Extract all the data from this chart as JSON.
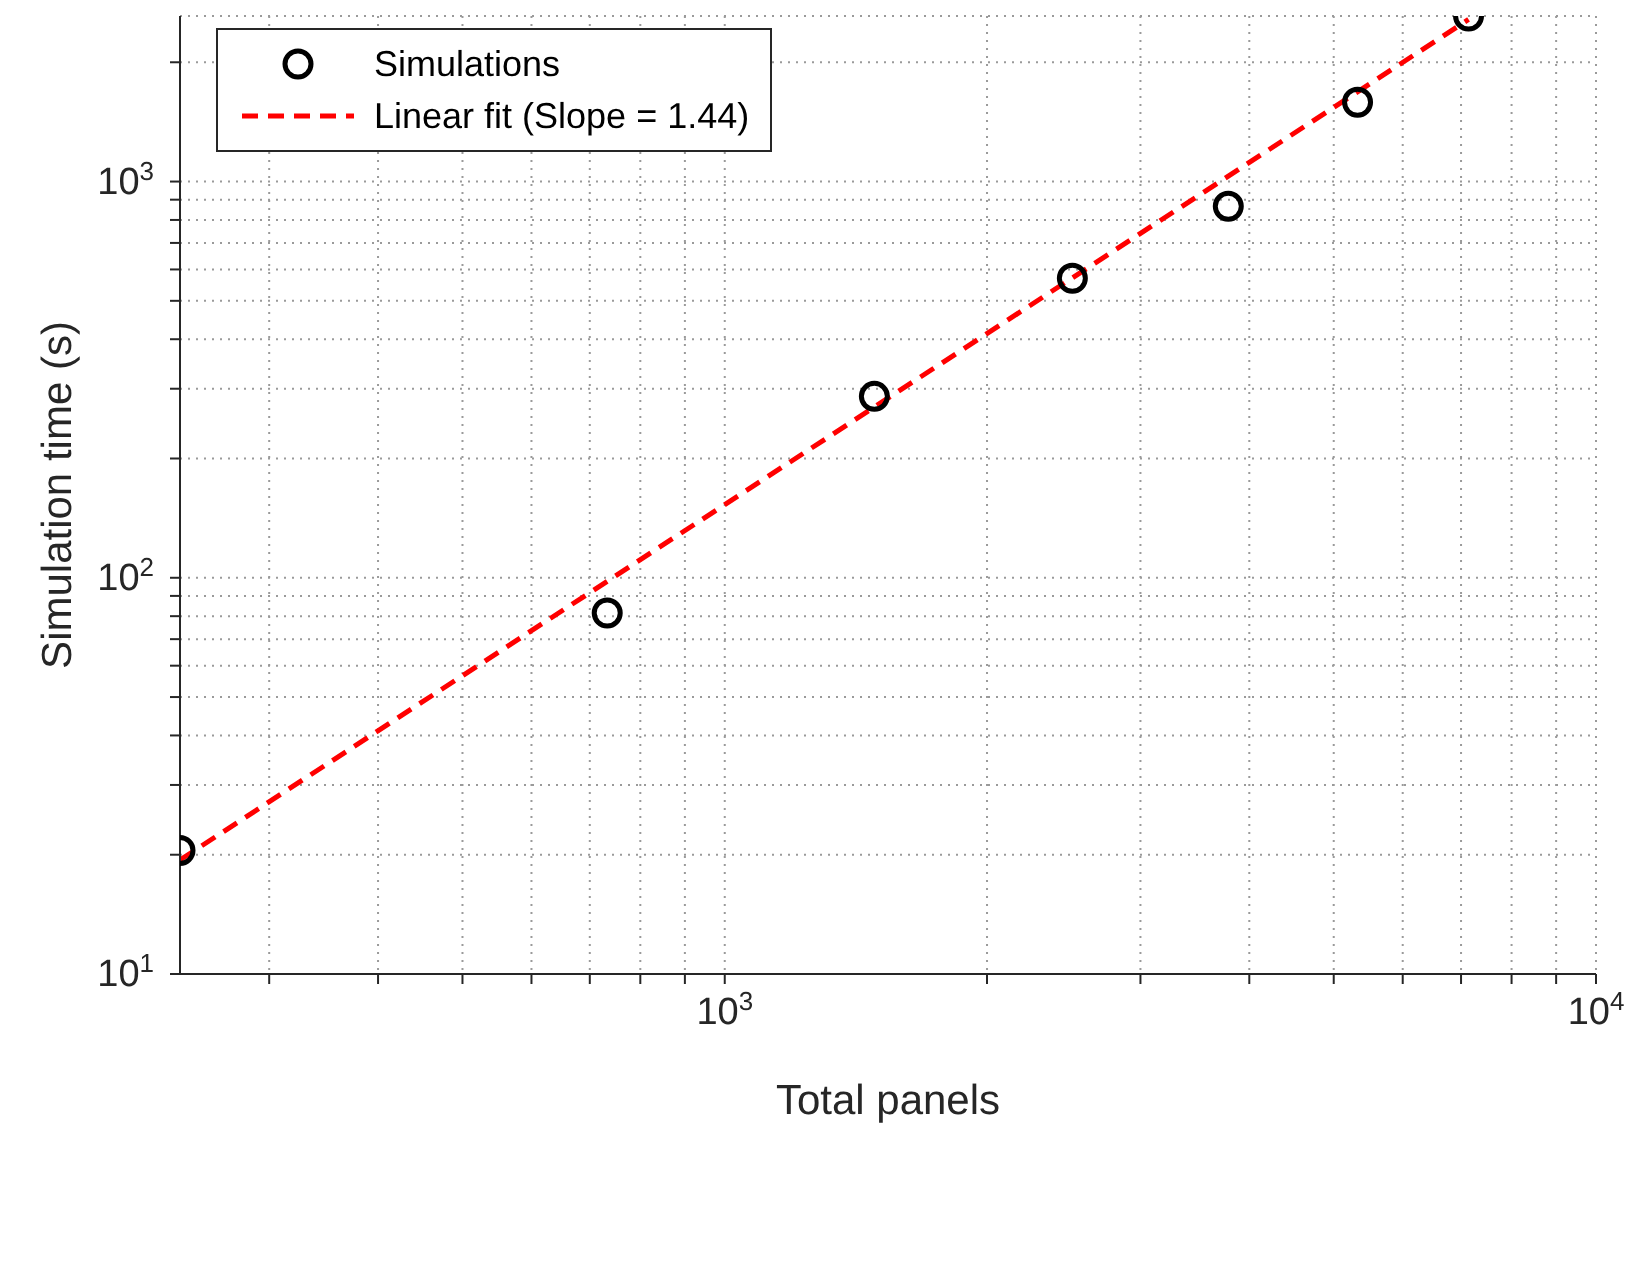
{
  "chart_data": {
    "type": "scatter",
    "xlabel": "Total panels",
    "ylabel": "Simulation time (s)",
    "log": "xy",
    "grid": true,
    "legend": "top left",
    "xlim": [
      237,
      10000
    ],
    "ylim": [
      10,
      2617
    ],
    "xticks": [
      {
        "value": 300,
        "label": null
      },
      {
        "value": 400,
        "label": null
      },
      {
        "value": 500,
        "label": null
      },
      {
        "value": 600,
        "label": null
      },
      {
        "value": 700,
        "label": null
      },
      {
        "value": 800,
        "label": null
      },
      {
        "value": 900,
        "label": null
      },
      {
        "value": 1000,
        "label": "10$^{3}$"
      },
      {
        "value": 2000,
        "label": null
      },
      {
        "value": 3000,
        "label": null
      },
      {
        "value": 4000,
        "label": null
      },
      {
        "value": 5000,
        "label": null
      },
      {
        "value": 6000,
        "label": null
      },
      {
        "value": 7000,
        "label": null
      },
      {
        "value": 8000,
        "label": null
      },
      {
        "value": 9000,
        "label": null
      },
      {
        "value": 10000,
        "label": "10$^{4}$"
      }
    ],
    "yticks": [
      {
        "value": 10,
        "label": "10$^{1}$"
      },
      {
        "value": 20,
        "label": null
      },
      {
        "value": 30,
        "label": null
      },
      {
        "value": 40,
        "label": null
      },
      {
        "value": 50,
        "label": null
      },
      {
        "value": 60,
        "label": null
      },
      {
        "value": 70,
        "label": null
      },
      {
        "value": 80,
        "label": null
      },
      {
        "value": 90,
        "label": null
      },
      {
        "value": 100,
        "label": "10$^{2}$"
      },
      {
        "value": 200,
        "label": null
      },
      {
        "value": 300,
        "label": null
      },
      {
        "value": 400,
        "label": null
      },
      {
        "value": 500,
        "label": null
      },
      {
        "value": 600,
        "label": null
      },
      {
        "value": 700,
        "label": null
      },
      {
        "value": 800,
        "label": null
      },
      {
        "value": 900,
        "label": null
      },
      {
        "value": 1000,
        "label": "10$^{3}$"
      },
      {
        "value": 2000,
        "label": null
      }
    ],
    "series": [
      {
        "name": "Simulations",
        "marker": "circle",
        "color": "#000000",
        "x": [
          237,
          733,
          1485,
          2506,
          3784,
          5325,
          7140
        ],
        "values": [
          20.5,
          81.5,
          287,
          570,
          866,
          1585,
          2617
        ]
      },
      {
        "name": "Linear fit (Slope = 1.44)",
        "type": "line",
        "line_style": "dashed",
        "marker": "none",
        "color": "#ff0000",
        "x": [
          237,
          7140
        ],
        "values": [
          19.4,
          2565
        ]
      }
    ]
  }
}
